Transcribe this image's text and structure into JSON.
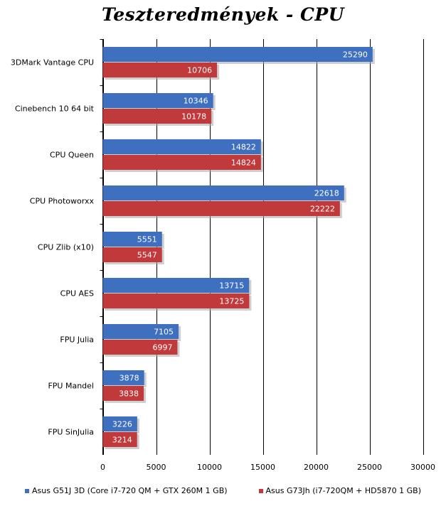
{
  "chart_data": {
    "type": "bar",
    "orientation": "horizontal",
    "title": "Teszteredmények - CPU",
    "categories": [
      "3DMark Vantage  CPU",
      "Cinebench 10 64 bit",
      "CPU Queen",
      "CPU Photoworxx",
      "CPU Zlib (x10)",
      "CPU AES",
      "FPU Julia",
      "FPU Mandel",
      "FPU SinJulia"
    ],
    "series": [
      {
        "name": "Asus G51J 3D (Core i7-720 QM + GTX 260M 1 GB)",
        "color": "#3f6fbf",
        "values": [
          25290,
          10346,
          14822,
          22618,
          5551,
          13715,
          7105,
          3878,
          3226
        ]
      },
      {
        "name": "Asus G73Jh (i7-720QM + HD5870 1 GB)",
        "color": "#c0393b",
        "values": [
          10706,
          10178,
          14824,
          22222,
          5547,
          13725,
          6997,
          3838,
          3214
        ]
      }
    ],
    "xlim": [
      0,
      30000
    ],
    "xticks": [
      0,
      5000,
      10000,
      15000,
      20000,
      25000,
      30000
    ],
    "grid": true,
    "legend_position": "bottom"
  }
}
